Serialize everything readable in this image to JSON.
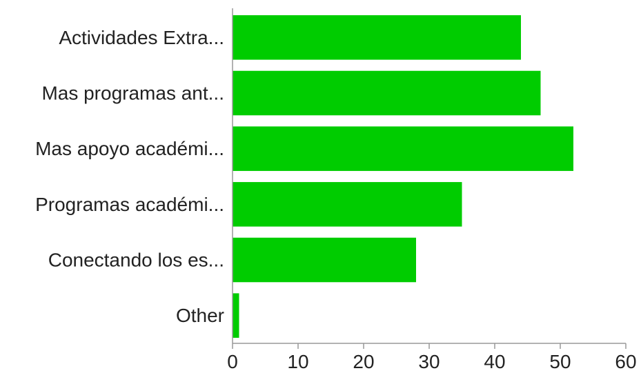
{
  "chart_data": {
    "type": "bar",
    "orientation": "horizontal",
    "categories": [
      "Actividades Extra...",
      "Mas programas ant...",
      "Mas apoyo académi...",
      "Programas académi...",
      "Conectando los es...",
      "Other"
    ],
    "values": [
      44,
      47,
      52,
      35,
      28,
      1
    ],
    "xlim": [
      0,
      60
    ],
    "xticks": [
      0,
      10,
      20,
      30,
      40,
      50,
      60
    ],
    "title": "",
    "xlabel": "",
    "ylabel": "",
    "grid": false,
    "legend": "none",
    "bar_color": "#00cc00"
  }
}
